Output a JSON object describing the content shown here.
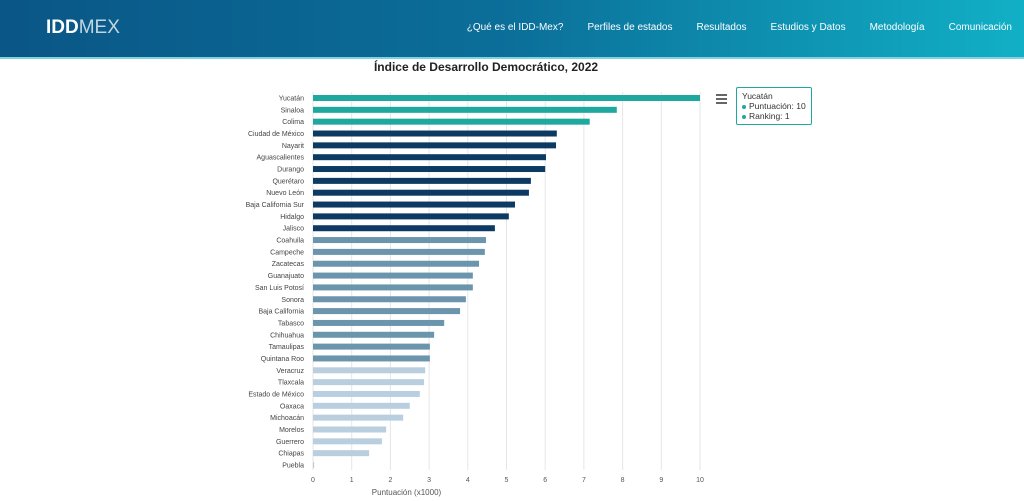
{
  "header": {
    "logo_bold": "IDD",
    "logo_light": "MEX",
    "menu": [
      "¿Qué es el IDD-Mex?",
      "Perfiles de estados",
      "Resultados",
      "Estudios y Datos",
      "Metodología",
      "Comunicación"
    ]
  },
  "tooltip": {
    "state": "Yucatán",
    "score_label": "Puntuación: 10",
    "rank_label": "Ranking: 1"
  },
  "chart_data": {
    "type": "bar",
    "orientation": "horizontal",
    "title": "Índice de Desarrollo Democrático, 2022",
    "xlabel": "Puntuación (x1000)",
    "ylabel": "",
    "xlim": [
      0,
      10
    ],
    "xticks": [
      "0",
      "1",
      "2",
      "3",
      "4",
      "5",
      "6",
      "7",
      "8",
      "9",
      "10"
    ],
    "grid": true,
    "categories": [
      "Yucatán",
      "Sinaloa",
      "Colima",
      "Ciudad de México",
      "Nayarit",
      "Aguascalientes",
      "Durango",
      "Querétaro",
      "Nuevo León",
      "Baja California Sur",
      "Hidalgo",
      "Jalisco",
      "Coahuila",
      "Campeche",
      "Zacatecas",
      "Guanajuato",
      "San Luis Potosí",
      "Sonora",
      "Baja California",
      "Tabasco",
      "Chihuahua",
      "Tamaulipas",
      "Quintana Roo",
      "Veracruz",
      "Tlaxcala",
      "Estado de México",
      "Oaxaca",
      "Michoacán",
      "Morelos",
      "Guerrero",
      "Chiapas",
      "Puebla"
    ],
    "values": [
      10,
      7.85,
      7.15,
      6.3,
      6.28,
      6.02,
      6.0,
      5.63,
      5.58,
      5.22,
      5.06,
      4.7,
      4.47,
      4.44,
      4.29,
      4.13,
      4.13,
      3.95,
      3.8,
      3.39,
      3.13,
      3.02,
      3.02,
      2.9,
      2.87,
      2.76,
      2.5,
      2.33,
      1.89,
      1.78,
      1.45,
      0.03
    ],
    "colors": {
      "alto": "#1fa89f",
      "medio": "#0d3a63",
      "bajo": "#6b94ad",
      "minimo": "#b9cfe0"
    },
    "groups": [
      "alto",
      "alto",
      "alto",
      "medio",
      "medio",
      "medio",
      "medio",
      "medio",
      "medio",
      "medio",
      "medio",
      "medio",
      "bajo",
      "bajo",
      "bajo",
      "bajo",
      "bajo",
      "bajo",
      "bajo",
      "bajo",
      "bajo",
      "bajo",
      "bajo",
      "minimo",
      "minimo",
      "minimo",
      "minimo",
      "minimo",
      "minimo",
      "minimo",
      "minimo",
      "minimo"
    ]
  }
}
